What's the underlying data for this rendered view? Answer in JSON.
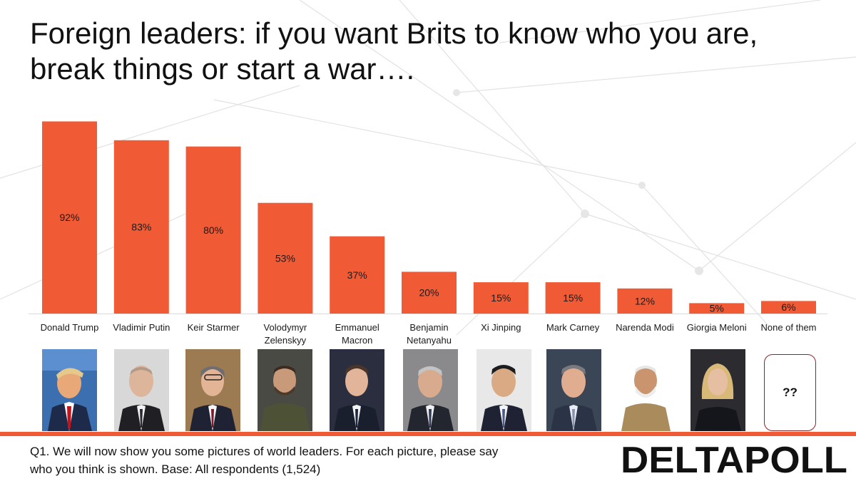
{
  "title": "Foreign leaders: if you want Brits to know who you are, break things or start a war….",
  "chart_data": {
    "type": "bar",
    "title": "Foreign leaders: if you want Brits to know who you are, break things or start a war….",
    "categories": [
      [
        "Donald Trump"
      ],
      [
        "Vladimir Putin"
      ],
      [
        "Keir Starmer"
      ],
      [
        "Volodymyr",
        "Zelenskyy"
      ],
      [
        "Emmanuel",
        "Macron"
      ],
      [
        "Benjamin",
        "Netanyahu"
      ],
      [
        "Xi Jinping"
      ],
      [
        "Mark Carney"
      ],
      [
        "Narenda Modi"
      ],
      [
        "Giorgia Meloni"
      ],
      [
        "None of them"
      ]
    ],
    "values": [
      92,
      83,
      80,
      53,
      37,
      20,
      15,
      15,
      12,
      5,
      6
    ],
    "value_labels": [
      "92%",
      "83%",
      "80%",
      "53%",
      "37%",
      "20%",
      "15%",
      "15%",
      "12%",
      "5%",
      "6%"
    ],
    "unit": "%",
    "ylim": [
      0,
      100
    ],
    "xlabel": "",
    "ylabel": "",
    "bar_color": "#f05a35"
  },
  "photos": {
    "unknown_label": "??"
  },
  "footnote": {
    "line1": "Q1. We will now show you some pictures of world leaders. For each picture, please say",
    "line2": "who you think is shown. Base: All respondents (1,524)"
  },
  "brand": {
    "logo_text": "DELTAPOLL",
    "accent_color": "#f05a35"
  }
}
